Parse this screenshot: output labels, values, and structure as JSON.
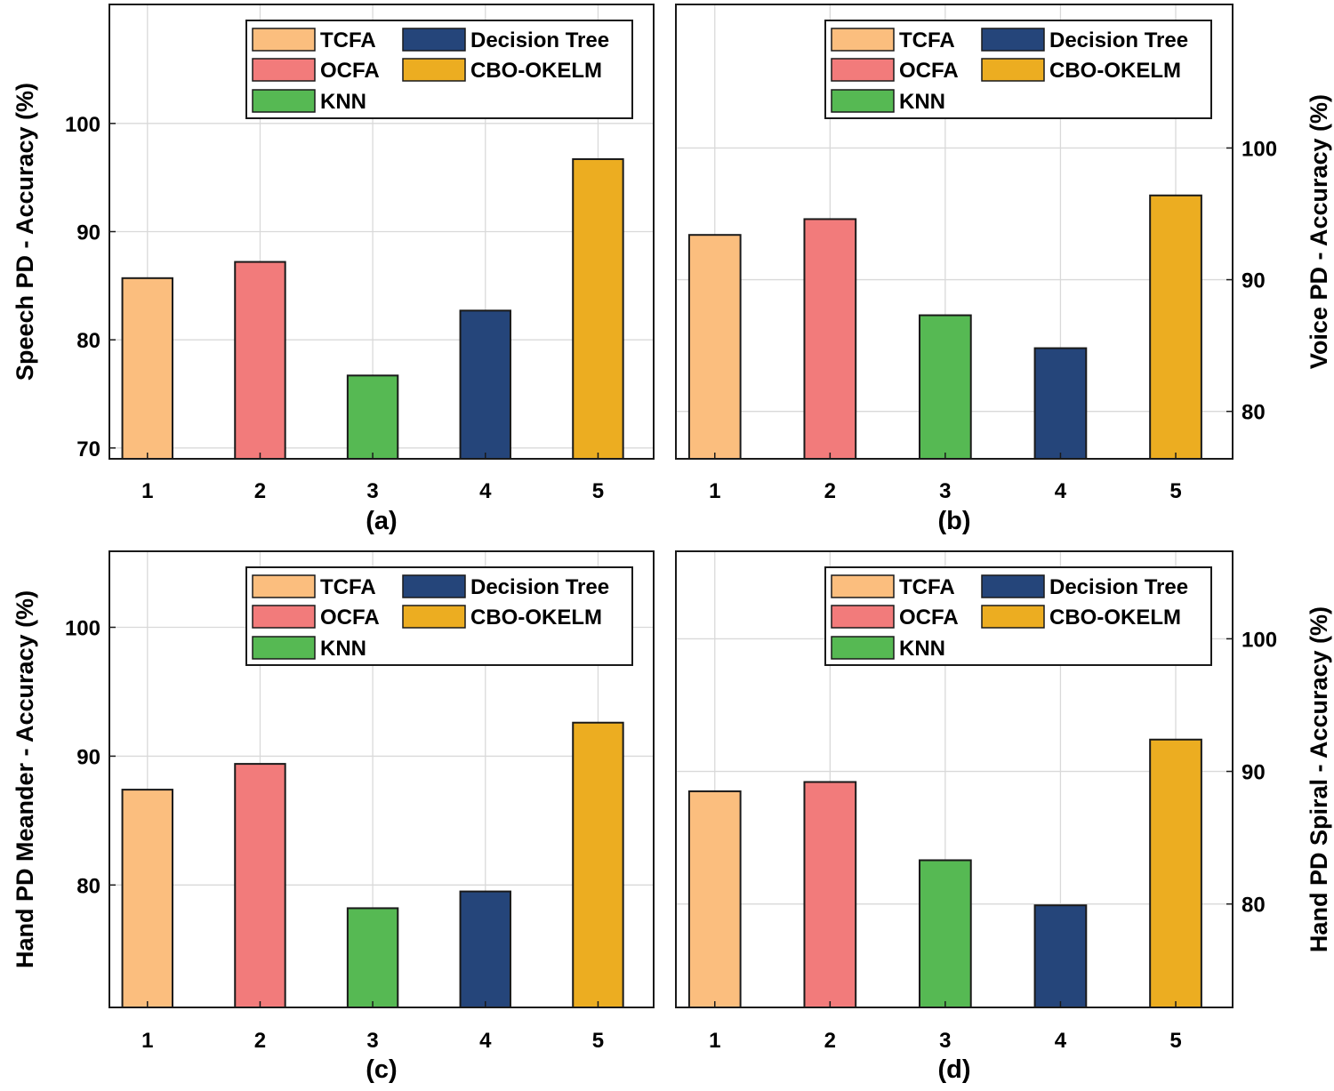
{
  "colors": {
    "TCFA": "#fbbe7e",
    "OCFA": "#f27b7b",
    "KNN": "#56b953",
    "Decision Tree": "#25457a",
    "CBO-OKELM": "#ecad21",
    "grid": "#d9d9d9",
    "frame": "#1a1a1a"
  },
  "legend_items": [
    "TCFA",
    "OCFA",
    "KNN",
    "Decision Tree",
    "CBO-OKELM"
  ],
  "chart_data": [
    {
      "type": "bar",
      "panel_label": "(a)",
      "categories": [
        "1",
        "2",
        "3",
        "4",
        "5"
      ],
      "series": [
        {
          "name": "Accuracy",
          "values": [
            85.7,
            87.2,
            76.7,
            82.7,
            96.7
          ]
        }
      ],
      "bar_methods": [
        "TCFA",
        "OCFA",
        "KNN",
        "Decision Tree",
        "CBO-OKELM"
      ],
      "ylabel": "Speech PD - Accuracy (%)",
      "ylabel_side": "left",
      "ylim": [
        69,
        111
      ],
      "yticks": [
        70,
        80,
        90,
        100
      ],
      "ytick_labels": [
        "70",
        "80",
        "90",
        "100"
      ],
      "grid": true,
      "legend": "top-right"
    },
    {
      "type": "bar",
      "panel_label": "(b)",
      "categories": [
        "1",
        "2",
        "3",
        "4",
        "5"
      ],
      "series": [
        {
          "name": "Accuracy",
          "values": [
            93.4,
            94.6,
            87.3,
            84.8,
            96.4
          ]
        }
      ],
      "bar_methods": [
        "TCFA",
        "OCFA",
        "KNN",
        "Decision Tree",
        "CBO-OKELM"
      ],
      "ylabel": "Voice PD - Accuracy (%)",
      "ylabel_side": "right",
      "ylim": [
        76.4,
        110.9
      ],
      "yticks": [
        80,
        90,
        100
      ],
      "ytick_labels": [
        "80",
        "90",
        "100"
      ],
      "grid": true,
      "legend": "top-right"
    },
    {
      "type": "bar",
      "panel_label": "(c)",
      "categories": [
        "1",
        "2",
        "3",
        "4",
        "5"
      ],
      "series": [
        {
          "name": "Accuracy",
          "values": [
            87.4,
            89.4,
            78.2,
            79.5,
            92.6
          ]
        }
      ],
      "bar_methods": [
        "TCFA",
        "OCFA",
        "KNN",
        "Decision Tree",
        "CBO-OKELM"
      ],
      "ylabel": "Hand PD Meander - Accuracy (%)",
      "ylabel_side": "left",
      "ylim": [
        70.5,
        105.9
      ],
      "yticks": [
        80,
        90,
        100
      ],
      "ytick_labels": [
        "80",
        "90",
        "100"
      ],
      "grid": true,
      "legend": "top-right"
    },
    {
      "type": "bar",
      "panel_label": "(d)",
      "categories": [
        "1",
        "2",
        "3",
        "4",
        "5"
      ],
      "series": [
        {
          "name": "Accuracy",
          "values": [
            88.5,
            89.2,
            83.3,
            79.9,
            92.4
          ]
        }
      ],
      "bar_methods": [
        "TCFA",
        "OCFA",
        "KNN",
        "Decision Tree",
        "CBO-OKELM"
      ],
      "ylabel": "Hand PD Spiral - Accuracy (%)",
      "ylabel_side": "right",
      "ylim": [
        72.2,
        106.6
      ],
      "yticks": [
        80,
        90,
        100
      ],
      "ytick_labels": [
        "80",
        "90",
        "100"
      ],
      "grid": true,
      "legend": "top-right"
    }
  ]
}
